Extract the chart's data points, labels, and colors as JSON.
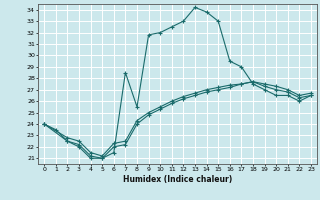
{
  "xlabel": "Humidex (Indice chaleur)",
  "bg_color": "#cce8ec",
  "grid_color": "#ffffff",
  "line_color": "#1a6b6b",
  "xlim": [
    -0.5,
    23.5
  ],
  "ylim": [
    20.5,
    34.5
  ],
  "xticks": [
    0,
    1,
    2,
    3,
    4,
    5,
    6,
    7,
    8,
    9,
    10,
    11,
    12,
    13,
    14,
    15,
    16,
    17,
    18,
    19,
    20,
    21,
    22,
    23
  ],
  "yticks": [
    21,
    22,
    23,
    24,
    25,
    26,
    27,
    28,
    29,
    30,
    31,
    32,
    33,
    34
  ],
  "series1_x": [
    0,
    1,
    2,
    3,
    4,
    5,
    6,
    7,
    8,
    9,
    10,
    11,
    12,
    13,
    14,
    15,
    16,
    17,
    18,
    19,
    20,
    21,
    22,
    23
  ],
  "series1_y": [
    24.0,
    23.5,
    22.5,
    22.0,
    21.0,
    21.0,
    21.5,
    28.5,
    25.5,
    31.8,
    32.0,
    32.5,
    33.0,
    34.2,
    33.8,
    33.0,
    29.5,
    29.0,
    27.5,
    27.0,
    26.5,
    26.5,
    26.0,
    26.5
  ],
  "series2_x": [
    0,
    2,
    3,
    4,
    5,
    6,
    7,
    8,
    9,
    10,
    11,
    12,
    13,
    14,
    15,
    16,
    17,
    18,
    19,
    20,
    21,
    22,
    23
  ],
  "series2_y": [
    24.0,
    22.5,
    22.2,
    21.2,
    21.0,
    22.0,
    22.2,
    24.0,
    24.8,
    25.3,
    25.8,
    26.2,
    26.5,
    26.8,
    27.0,
    27.2,
    27.5,
    27.7,
    27.5,
    27.3,
    27.0,
    26.5,
    26.7
  ],
  "series3_x": [
    0,
    2,
    3,
    4,
    5,
    6,
    7,
    8,
    9,
    10,
    11,
    12,
    13,
    14,
    15,
    16,
    17,
    18,
    19,
    20,
    21,
    22,
    23
  ],
  "series3_y": [
    24.0,
    22.8,
    22.5,
    21.5,
    21.2,
    22.3,
    22.5,
    24.3,
    25.0,
    25.5,
    26.0,
    26.4,
    26.7,
    27.0,
    27.2,
    27.4,
    27.5,
    27.7,
    27.3,
    27.0,
    26.8,
    26.3,
    26.5
  ]
}
